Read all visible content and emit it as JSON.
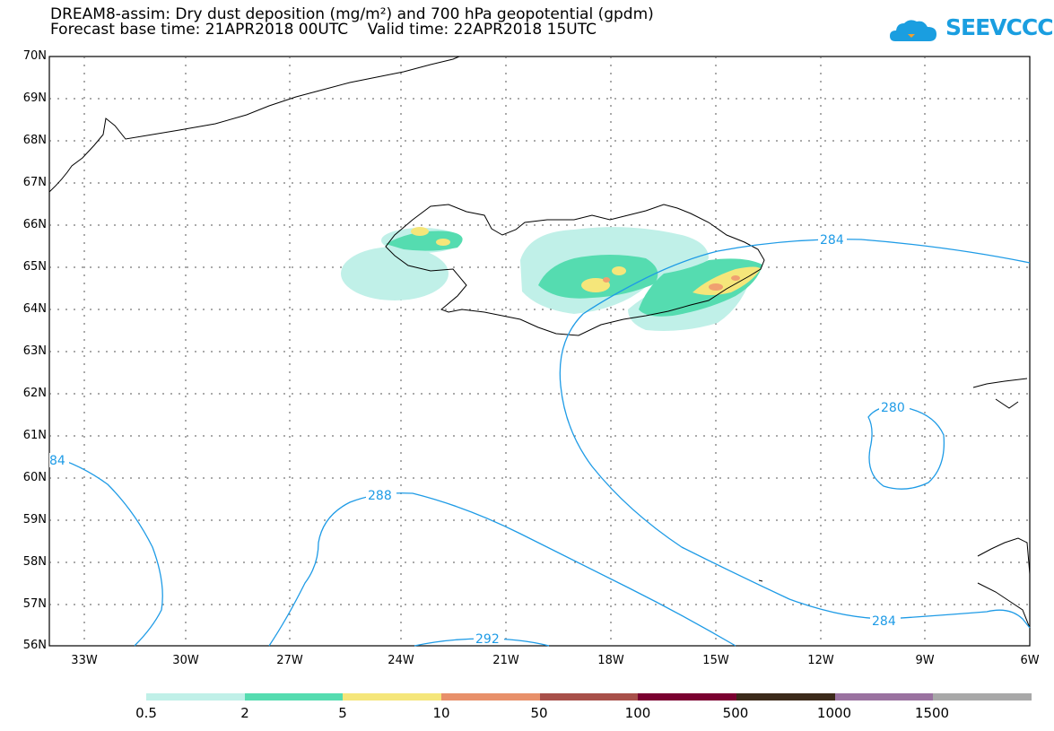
{
  "title": {
    "line1": "DREAM8-assim: Dry dust deposition (mg/m²) and 700 hPa geopotential (gpdm)",
    "line2": "Forecast base time: 21APR2018 00UTC    Valid time: 22APR2018 15UTC"
  },
  "logo": {
    "text": "SEEVCCC",
    "icon": "cloud-icon",
    "color": "#1a9ee0"
  },
  "axes": {
    "lat_labels": [
      "70N",
      "69N",
      "68N",
      "67N",
      "66N",
      "65N",
      "64N",
      "63N",
      "62N",
      "61N",
      "60N",
      "59N",
      "58N",
      "57N",
      "56N"
    ],
    "lon_labels": [
      "33W",
      "30W",
      "27W",
      "24W",
      "21W",
      "18W",
      "15W",
      "12W",
      "9W",
      "6W"
    ]
  },
  "contours": {
    "color": "#1e9be6",
    "labels": [
      "284",
      "280",
      "84",
      "288",
      "292",
      "284"
    ]
  },
  "dust_colors": {
    "level_0_5": "#c0f0e8",
    "level_2": "#55dcb0",
    "level_5": "#f5e67a",
    "level_10": "#f0a070"
  },
  "colorbar": {
    "colors": [
      "#c0f0e8",
      "#55dcb0",
      "#f5e67a",
      "#e8906a",
      "#a8504a",
      "#7a0030",
      "#3c2a1a",
      "#9a72a0",
      "#a8a8a8"
    ],
    "labels": [
      "0.5",
      "2",
      "5",
      "10",
      "50",
      "100",
      "500",
      "1000",
      "1500"
    ]
  }
}
